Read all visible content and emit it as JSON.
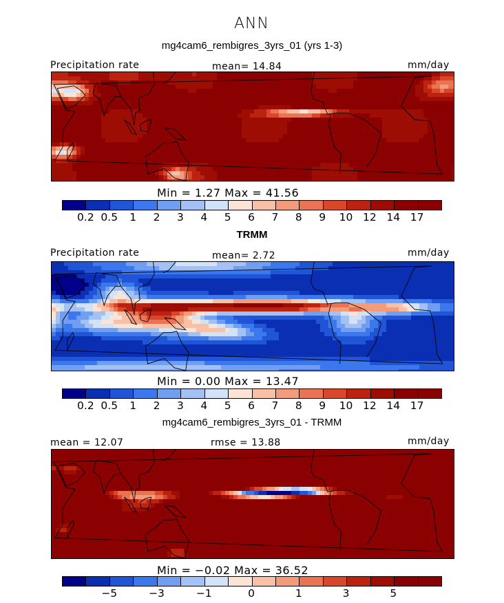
{
  "chart_data": {
    "type": "heatmap",
    "supertitle": "ANN",
    "palette": [
      "#00008b",
      "#0a2fb3",
      "#1f55d6",
      "#3b78ee",
      "#6f9ef2",
      "#a3c1f4",
      "#d2e3f8",
      "#fbe3d6",
      "#f8c0a7",
      "#f29c7b",
      "#ea7354",
      "#d9472b",
      "#bc2210",
      "#9e0d04",
      "#8b0000"
    ],
    "panels": [
      {
        "title": "mg4cam6_rembigres_3yrs_01 (yrs 1-3)",
        "left_label": "Precipitation rate",
        "center_label": "mean=  14.84",
        "units": "mm/day",
        "field": "model",
        "min_max": "Min =    1.27  Max =   41.56",
        "ticks": [
          "0.2",
          "0.5",
          "1",
          "2",
          "3",
          "4",
          "5",
          "6",
          "7",
          "8",
          "9",
          "10",
          "12",
          "14",
          "17"
        ]
      },
      {
        "title": "TRMM",
        "left_label": "Precipitation rate",
        "center_label": "mean=   2.72",
        "units": "mm/day",
        "field": "obs",
        "min_max": "Min =    0.00  Max =   13.47",
        "ticks": [
          "0.2",
          "0.5",
          "1",
          "2",
          "3",
          "4",
          "5",
          "6",
          "7",
          "8",
          "9",
          "10",
          "12",
          "14",
          "17"
        ]
      },
      {
        "title": "mg4cam6_rembigres_3yrs_01 - TRMM",
        "left_label": "mean =  12.07",
        "center_label": "rmse =  13.88",
        "units": "mm/day",
        "field": "diff",
        "min_max": "Min =  −0.02  Max =   36.52",
        "ticks": [
          "−5",
          "−3",
          "−1",
          "0",
          "1",
          "3",
          "5"
        ]
      }
    ]
  }
}
